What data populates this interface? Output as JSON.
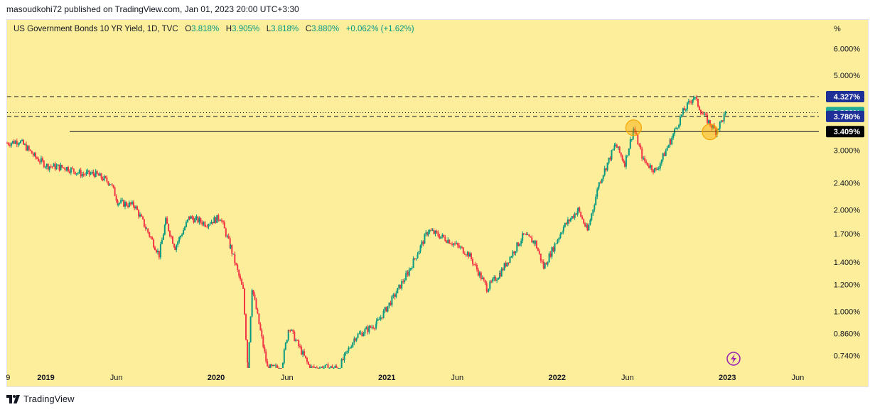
{
  "header": {
    "published": "masoudkohi72 published on TradingView.com, Jan 01, 2023 20:00 UTC+3:30"
  },
  "legend": {
    "symbol": "US Government Bonds 10 YR Yield, 1D, TVC",
    "open_label": "O",
    "open": "3.818%",
    "high_label": "H",
    "high": "3.905%",
    "low_label": "L",
    "low": "3.818%",
    "close_label": "C",
    "close": "3.880%",
    "change": "+0.062% (+1.62%)"
  },
  "footer": {
    "brand": "TradingView"
  },
  "colors": {
    "background": "#fdee9c",
    "up": "#089981",
    "down": "#f23645",
    "last_price": "#22ab94",
    "level_blue": "#2962ff",
    "level_navy": "#1e2f97",
    "level_black": "#131722",
    "marker": "#f7a600"
  },
  "icons": {
    "brand": "tradingview-logo-icon",
    "flash": "lightning-icon"
  },
  "chart_data": {
    "type": "line",
    "title": "US Government Bonds 10 YR Yield, 1D, TVC",
    "y_scale": "log",
    "y_unit": "%",
    "ylim": [
      0.68,
      7.3
    ],
    "xlim": [
      "2018-10-10",
      "2023-07-10"
    ],
    "x_ticks": [
      {
        "label": "9",
        "date": "2018-10-12"
      },
      {
        "label": "2019",
        "date": "2019-01-01"
      },
      {
        "label": "Jun",
        "date": "2019-06-01"
      },
      {
        "label": "2020",
        "date": "2020-01-01"
      },
      {
        "label": "Jun",
        "date": "2020-06-01"
      },
      {
        "label": "2021",
        "date": "2021-01-01"
      },
      {
        "label": "Jun",
        "date": "2021-06-01"
      },
      {
        "label": "2022",
        "date": "2022-01-01"
      },
      {
        "label": "Jun",
        "date": "2022-06-01"
      },
      {
        "label": "2023",
        "date": "2023-01-01"
      },
      {
        "label": "Jun",
        "date": "2023-06-01"
      }
    ],
    "y_ticks": [
      {
        "label": "6.000%",
        "value": 6.0
      },
      {
        "label": "5.000%",
        "value": 5.0
      },
      {
        "label": "3.000%",
        "value": 3.0
      },
      {
        "label": "2.400%",
        "value": 2.4
      },
      {
        "label": "2.000%",
        "value": 2.0
      },
      {
        "label": "1.700%",
        "value": 1.7
      },
      {
        "label": "1.400%",
        "value": 1.4
      },
      {
        "label": "1.200%",
        "value": 1.2
      },
      {
        "label": "1.000%",
        "value": 1.0
      },
      {
        "label": "0.860%",
        "value": 0.86
      },
      {
        "label": "0.740%",
        "value": 0.74
      }
    ],
    "series": [
      {
        "values": [
          {
            "date": "2018-10-10",
            "close": 3.15
          },
          {
            "date": "2018-11-05",
            "close": 3.2
          },
          {
            "date": "2018-11-20",
            "close": 3.06
          },
          {
            "date": "2018-12-10",
            "close": 2.86
          },
          {
            "date": "2019-01-03",
            "close": 2.7
          },
          {
            "date": "2019-02-15",
            "close": 2.66
          },
          {
            "date": "2019-03-20",
            "close": 2.55
          },
          {
            "date": "2019-04-15",
            "close": 2.56
          },
          {
            "date": "2019-05-20",
            "close": 2.4
          },
          {
            "date": "2019-06-05",
            "close": 2.1
          },
          {
            "date": "2019-07-10",
            "close": 2.06
          },
          {
            "date": "2019-08-05",
            "close": 1.75
          },
          {
            "date": "2019-09-01",
            "close": 1.47
          },
          {
            "date": "2019-09-15",
            "close": 1.85
          },
          {
            "date": "2019-10-05",
            "close": 1.55
          },
          {
            "date": "2019-11-05",
            "close": 1.9
          },
          {
            "date": "2019-12-10",
            "close": 1.82
          },
          {
            "date": "2020-01-10",
            "close": 1.9
          },
          {
            "date": "2020-02-01",
            "close": 1.55
          },
          {
            "date": "2020-02-28",
            "close": 1.15
          },
          {
            "date": "2020-03-09",
            "close": 0.68
          },
          {
            "date": "2020-03-18",
            "close": 1.18
          },
          {
            "date": "2020-04-20",
            "close": 0.68
          },
          {
            "date": "2020-05-20",
            "close": 0.68
          },
          {
            "date": "2020-06-05",
            "close": 0.9
          },
          {
            "date": "2020-07-20",
            "close": 0.68
          },
          {
            "date": "2020-09-20",
            "close": 0.68
          },
          {
            "date": "2020-10-25",
            "close": 0.84
          },
          {
            "date": "2020-12-10",
            "close": 0.92
          },
          {
            "date": "2021-01-15",
            "close": 1.1
          },
          {
            "date": "2021-02-15",
            "close": 1.3
          },
          {
            "date": "2021-03-31",
            "close": 1.74
          },
          {
            "date": "2021-05-15",
            "close": 1.62
          },
          {
            "date": "2021-06-25",
            "close": 1.48
          },
          {
            "date": "2021-08-04",
            "close": 1.17
          },
          {
            "date": "2021-09-01",
            "close": 1.3
          },
          {
            "date": "2021-10-21",
            "close": 1.68
          },
          {
            "date": "2021-11-15",
            "close": 1.6
          },
          {
            "date": "2021-12-03",
            "close": 1.35
          },
          {
            "date": "2022-01-15",
            "close": 1.78
          },
          {
            "date": "2022-02-15",
            "close": 2.0
          },
          {
            "date": "2022-03-07",
            "close": 1.73
          },
          {
            "date": "2022-04-01",
            "close": 2.4
          },
          {
            "date": "2022-05-06",
            "close": 3.12
          },
          {
            "date": "2022-05-26",
            "close": 2.75
          },
          {
            "date": "2022-06-14",
            "close": 3.48
          },
          {
            "date": "2022-07-05",
            "close": 2.8
          },
          {
            "date": "2022-08-01",
            "close": 2.6
          },
          {
            "date": "2022-09-01",
            "close": 3.2
          },
          {
            "date": "2022-09-28",
            "close": 3.9
          },
          {
            "date": "2022-10-21",
            "close": 4.33
          },
          {
            "date": "2022-11-10",
            "close": 3.82
          },
          {
            "date": "2022-12-07",
            "close": 3.42
          },
          {
            "date": "2022-12-30",
            "close": 3.88
          }
        ]
      }
    ],
    "levels": [
      {
        "label": "4.327%",
        "value": 4.327,
        "style": "dashed"
      },
      {
        "label": "3.880%",
        "value": 3.88,
        "style": "dotted"
      },
      {
        "label": "3.780%",
        "value": 3.78,
        "style": "dashed"
      },
      {
        "label": "3.409%",
        "value": 3.409,
        "style": "solid"
      }
    ],
    "markers": [
      {
        "date": "2022-06-14",
        "value": 3.5
      },
      {
        "date": "2022-11-25",
        "value": 3.4
      }
    ]
  }
}
